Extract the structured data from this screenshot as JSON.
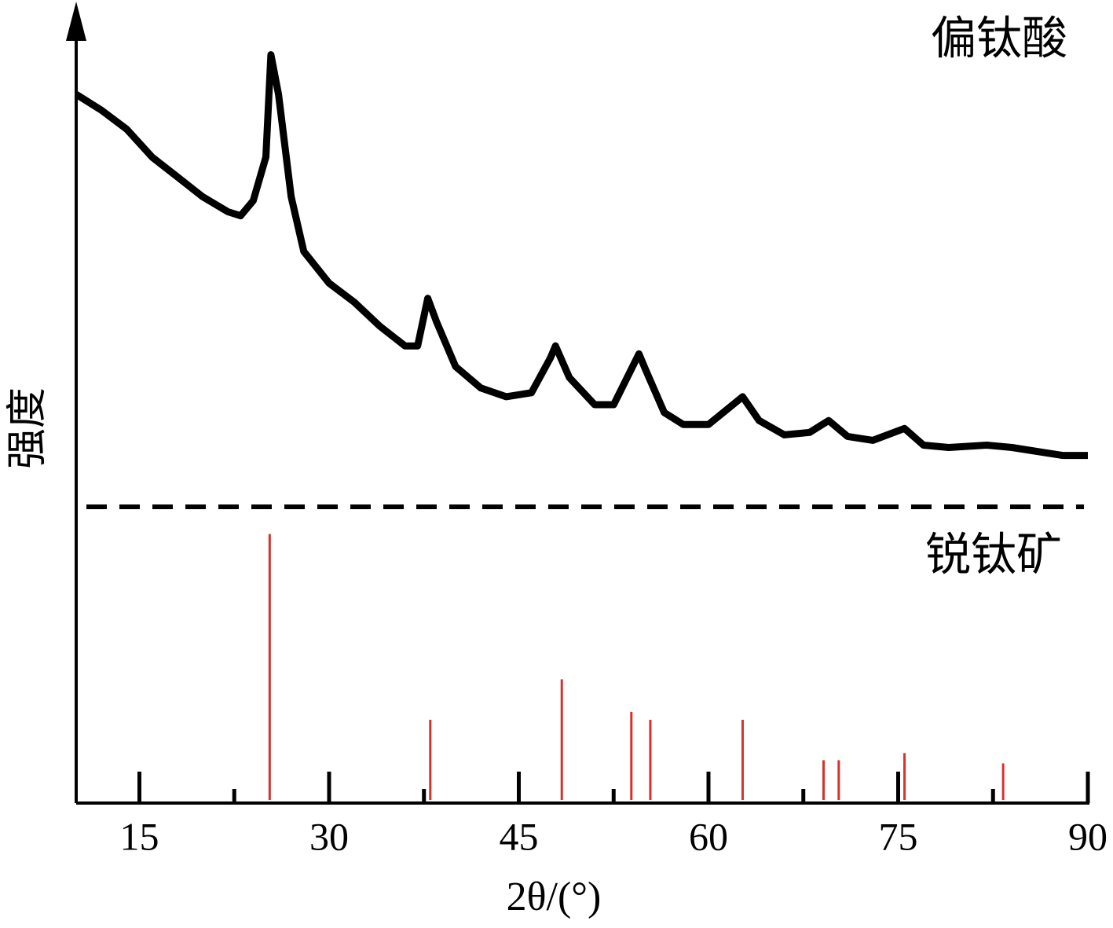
{
  "chart_data": {
    "type": "line",
    "xlabel": "2θ/(°)",
    "ylabel": "强度",
    "xlim": [
      10,
      90
    ],
    "xticks": [
      15,
      30,
      45,
      60,
      75,
      90
    ],
    "minor_xticks": [
      22.5,
      37.5,
      52.5,
      67.5,
      82.5
    ],
    "ylim": [
      0,
      100
    ],
    "series": [
      {
        "name": "偏钛酸",
        "color": "#000000",
        "style": "line",
        "x": [
          10,
          12,
          14,
          16,
          18,
          20,
          22,
          23,
          24,
          25,
          25.4,
          26,
          27,
          28,
          30,
          32,
          34,
          36,
          37,
          37.8,
          38.5,
          40,
          42,
          44,
          46,
          47.5,
          47.9,
          49,
          51,
          52.5,
          54.5,
          55,
          56.5,
          58,
          60,
          62.7,
          64,
          66,
          68,
          69.5,
          71,
          73,
          75.5,
          77,
          79,
          82,
          84,
          86,
          88,
          90
        ],
        "values": [
          89.3,
          87.3,
          84.9,
          81.4,
          78.9,
          76.4,
          74.5,
          74.0,
          75.9,
          81.4,
          94.3,
          89.3,
          76.4,
          69.5,
          65.5,
          63.1,
          60.1,
          57.6,
          57.6,
          63.6,
          60.6,
          55.0,
          52.3,
          51.2,
          51.7,
          56.1,
          57.6,
          53.6,
          50.2,
          50.2,
          56.6,
          54.7,
          49.2,
          47.7,
          47.7,
          51.2,
          48.2,
          46.4,
          46.7,
          48.2,
          46.2,
          45.7,
          47.2,
          45.1,
          44.8,
          45.1,
          44.8,
          44.3,
          43.8,
          43.8
        ]
      },
      {
        "name": "锐钛矿",
        "color": "#d9312b",
        "style": "stick",
        "x": [
          25.3,
          38.0,
          48.4,
          53.9,
          55.4,
          62.7,
          69.1,
          70.3,
          75.5,
          83.3
        ],
        "values": [
          33.9,
          10.5,
          15.6,
          11.5,
          10.5,
          10.5,
          5.4,
          5.4,
          6.3,
          5.0
        ]
      }
    ]
  }
}
